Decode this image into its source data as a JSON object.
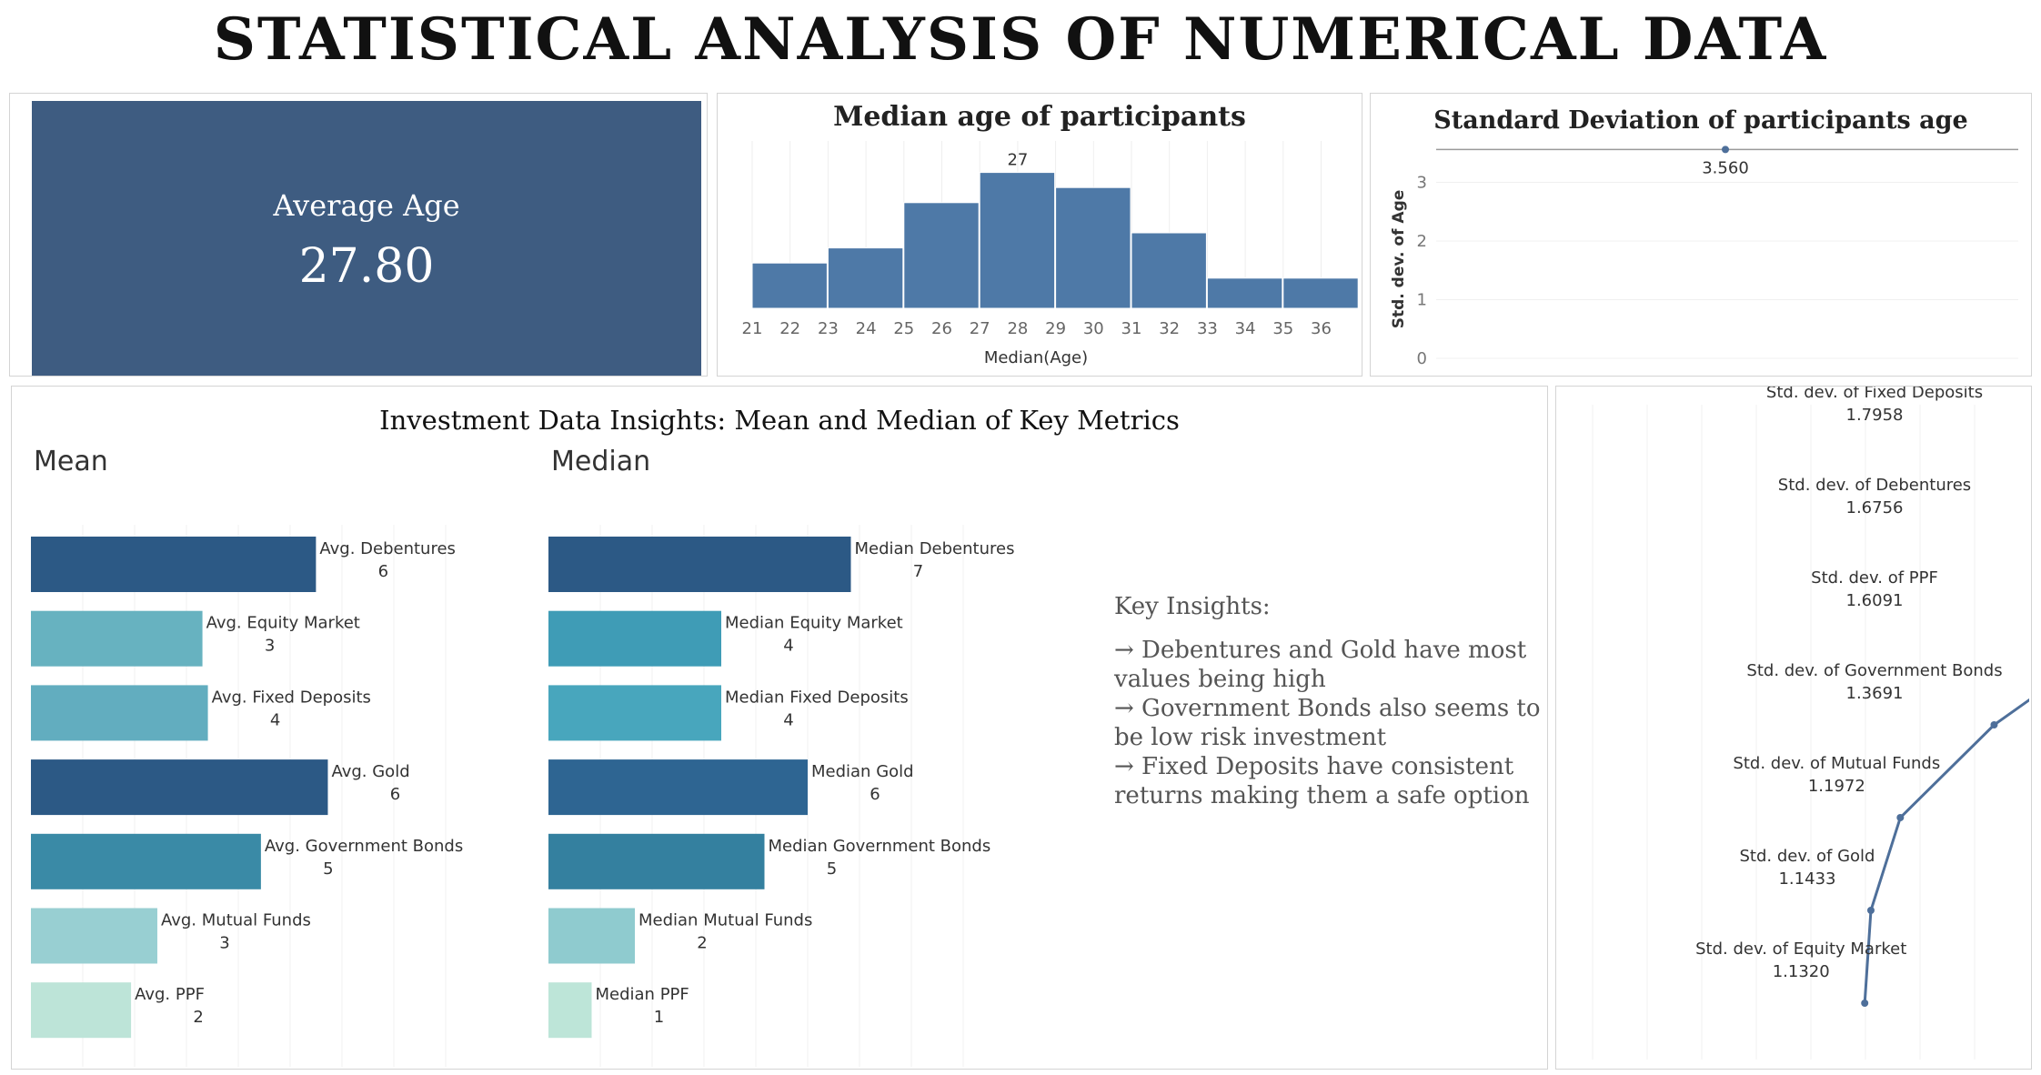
{
  "title": "STATISTICAL ANALYSIS OF NUMERICAL DATA",
  "colors": {
    "kpi_bg": "#3e5c81",
    "bar": "#4e79a7",
    "line": "#4e6f9a"
  },
  "kpi": {
    "label": "Average Age",
    "value": "27.80"
  },
  "chart_data": [
    {
      "type": "bar",
      "title": "Median age of participants",
      "xlabel": "Median(Age)",
      "categories": [
        "21",
        "22",
        "23",
        "24",
        "25",
        "26",
        "27",
        "28",
        "29",
        "30",
        "31",
        "32",
        "33",
        "34",
        "35",
        "36"
      ],
      "bins": [
        {
          "from": 21,
          "to": 23,
          "value": 3
        },
        {
          "from": 23,
          "to": 25,
          "value": 4
        },
        {
          "from": 25,
          "to": 27,
          "value": 7
        },
        {
          "from": 27,
          "to": 29,
          "value": 9
        },
        {
          "from": 29,
          "to": 31,
          "value": 8
        },
        {
          "from": 31,
          "to": 33,
          "value": 5
        },
        {
          "from": 33,
          "to": 35,
          "value": 2
        },
        {
          "from": 35,
          "to": 37,
          "value": 2
        }
      ],
      "annotation": "27"
    },
    {
      "type": "scatter",
      "title": "Standard Deviation of participants age",
      "ylabel": "Std. dev. of Age",
      "yticks": [
        "0",
        "1",
        "2",
        "3"
      ],
      "ylim": [
        0,
        3.5
      ],
      "value": 3.56,
      "value_label": "3.560"
    },
    {
      "type": "bar",
      "title": "Mean",
      "categories": [
        "Avg. Debentures",
        "Avg. Equity Market",
        "Avg. Fixed Deposits",
        "Avg. Gold",
        "Avg. Government Bonds",
        "Avg. Mutual Funds",
        "Avg. PPF"
      ],
      "values": [
        5.75,
        3.46,
        3.57,
        5.99,
        4.64,
        2.55,
        2.02
      ],
      "value_labels": [
        "6",
        "3",
        "4",
        "6",
        "5",
        "3",
        "2"
      ],
      "colors": [
        "#2c5985",
        "#67b2c0",
        "#62adbf",
        "#2c5985",
        "#3a8aa6",
        "#98cfd2",
        "#bde4d8"
      ]
    },
    {
      "type": "bar",
      "title": "Median",
      "categories": [
        "Median Debentures",
        "Median Equity Market",
        "Median Fixed Deposits",
        "Median Gold",
        "Median Government Bonds",
        "Median Mutual Funds",
        "Median PPF"
      ],
      "values": [
        7,
        4,
        4,
        6,
        5,
        2,
        1
      ],
      "value_labels": [
        "7",
        "4",
        "4",
        "6",
        "5",
        "2",
        "1"
      ],
      "colors": [
        "#2c5985",
        "#3f9cb6",
        "#48a6bd",
        "#2e6592",
        "#34809f",
        "#8fcbcf",
        "#bde5d8"
      ]
    },
    {
      "type": "line",
      "series": [
        {
          "name": "Std. dev. of Equity Market",
          "value": 1.132,
          "label": "1.1320"
        },
        {
          "name": "Std. dev. of Gold",
          "value": 1.1433,
          "label": "1.1433"
        },
        {
          "name": "Std. dev. of Mutual Funds",
          "value": 1.1972,
          "label": "1.1972"
        },
        {
          "name": "Std. dev. of Government Bonds",
          "value": 1.3691,
          "label": "1.3691"
        },
        {
          "name": "Std. dev. of PPF",
          "value": 1.6091,
          "label": "1.6091"
        },
        {
          "name": "Std. dev. of Debentures",
          "value": 1.6756,
          "label": "1.6756"
        },
        {
          "name": "Std. dev. of Fixed Deposits",
          "value": 1.7958,
          "label": "1.7958"
        }
      ]
    }
  ],
  "insights": {
    "title": "Investment Data Insights: Mean and Median of Key Metrics",
    "mean_title": "Mean",
    "median_title": "Median",
    "key_title": "Key Insights:",
    "lines": [
      "→ Debentures and Gold have most values being high",
      "→ Government Bonds also seems to be low risk investment",
      "→ Fixed Deposits have consistent returns making them a safe option"
    ]
  }
}
